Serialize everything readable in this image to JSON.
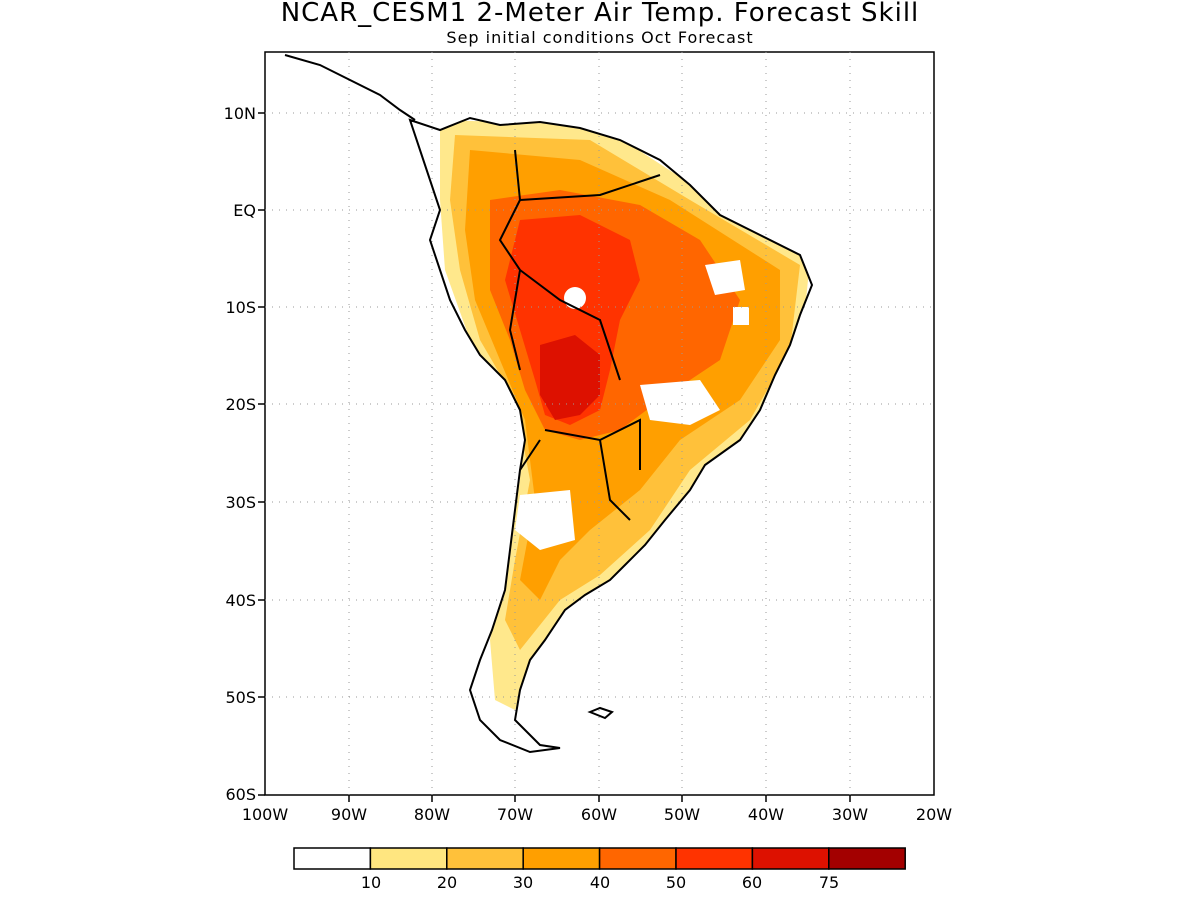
{
  "header": {
    "title": "NCAR_CESM1 2-Meter Air Temp. Forecast Skill",
    "subtitle": "Sep initial conditions  Oct Forecast"
  },
  "map": {
    "region": "South America",
    "lon_range": [
      -100,
      -20
    ],
    "lat_range": [
      -60,
      15
    ],
    "grid": true,
    "lat_labels": [
      "10N",
      "EQ",
      "10S",
      "20S",
      "30S",
      "40S",
      "50S",
      "60S"
    ],
    "lon_labels": [
      "100W",
      "90W",
      "80W",
      "70W",
      "60W",
      "50W",
      "40W",
      "30W",
      "20W"
    ]
  },
  "colorbar": {
    "colors": [
      "#ffffff",
      "#ffe680",
      "#ffc13a",
      "#ff9f00",
      "#ff6600",
      "#ff3300",
      "#dd1100",
      "#a30000"
    ],
    "labels": [
      "10",
      "20",
      "30",
      "40",
      "50",
      "60",
      "75"
    ]
  }
}
